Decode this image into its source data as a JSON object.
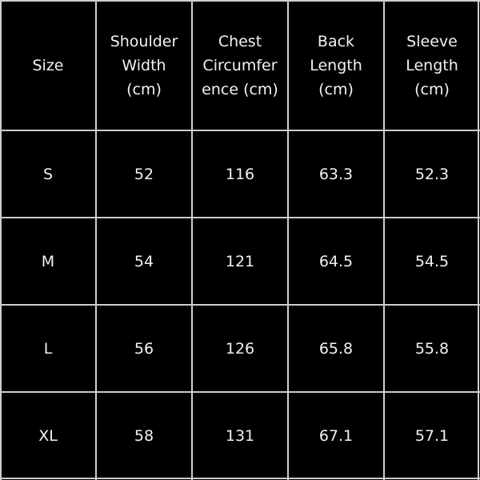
{
  "table": {
    "headers": [
      [
        "Size"
      ],
      [
        "Shoulder",
        "Width",
        "(cm)"
      ],
      [
        "Chest",
        "Circumfer",
        "ence (cm)"
      ],
      [
        "Back",
        "Length",
        "(cm)"
      ],
      [
        "Sleeve",
        "Length",
        "(cm)"
      ]
    ],
    "rows": [
      [
        "S",
        "52",
        "116",
        "63.3",
        "52.3"
      ],
      [
        "M",
        "54",
        "121",
        "64.5",
        "54.5"
      ],
      [
        "L",
        "56",
        "126",
        "65.8",
        "55.8"
      ],
      [
        "XL",
        "58",
        "131",
        "67.1",
        "57.1"
      ]
    ],
    "background_color": "#000000",
    "text_color": "#f2f2f2",
    "grid_color": "#cfcfcf"
  }
}
